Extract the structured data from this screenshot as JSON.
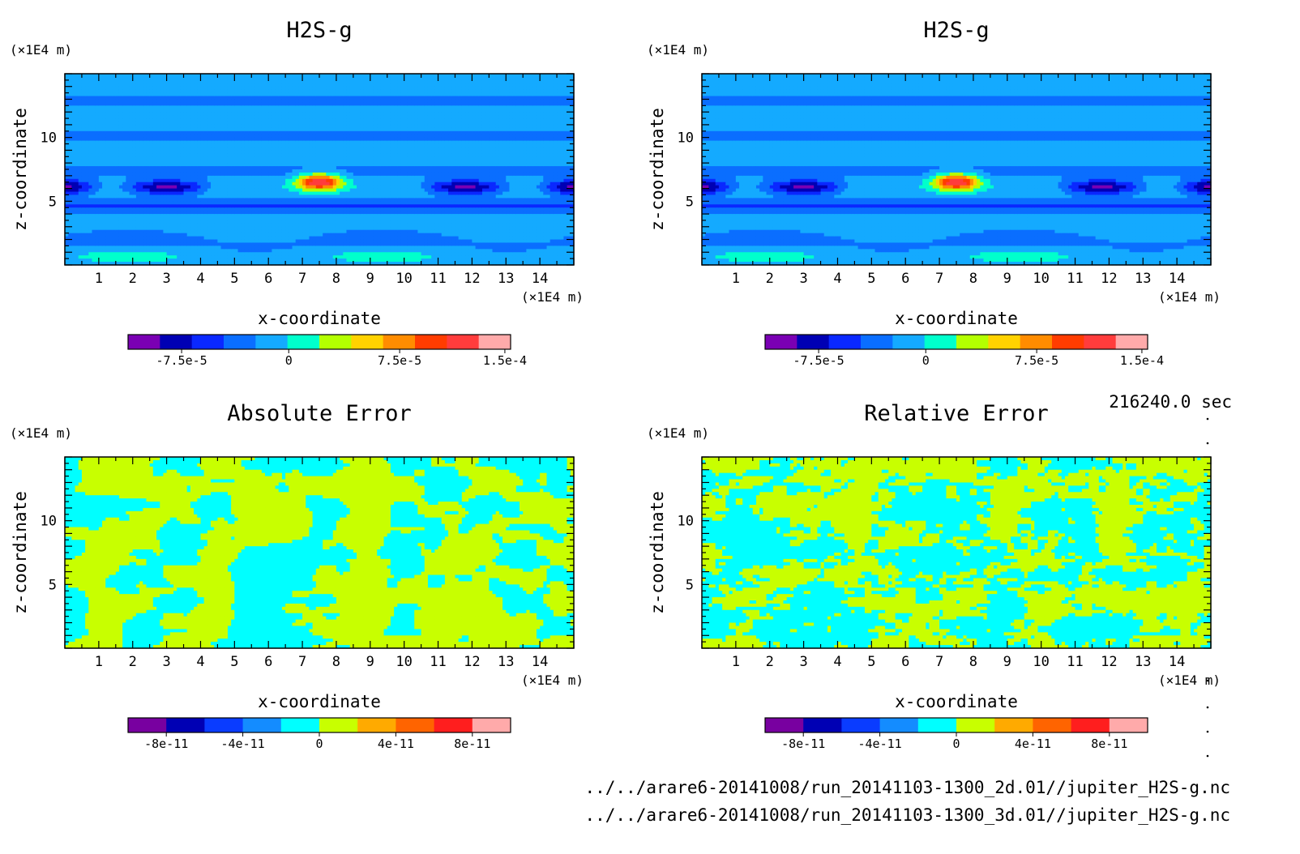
{
  "time_label": "216240.0 sec",
  "files": [
    "../../arare6-20141008/run_20141103-1300_2d.01//jupiter_H2S-g.nc",
    "../../arare6-20141008/run_20141103-1300_3d.01//jupiter_H2S-g.nc"
  ],
  "chart_data": [
    {
      "type": "heatmap",
      "title": "H2S-g",
      "xlabel": "x-coordinate",
      "ylabel": "z-coordinate",
      "x_unit": "(×1E4 m)",
      "y_unit": "(×1E4 m)",
      "xlim": [
        0,
        15
      ],
      "ylim": [
        0,
        15
      ],
      "x_ticks": [
        1,
        2,
        3,
        4,
        5,
        6,
        7,
        8,
        9,
        10,
        11,
        12,
        13,
        14
      ],
      "y_ticks": [
        5,
        10
      ],
      "colorbar": {
        "colors": [
          "#7a00b4",
          "#0000b4",
          "#0a28ff",
          "#0a6eff",
          "#14aaff",
          "#00ffcc",
          "#b4ff00",
          "#ffd200",
          "#ff8c00",
          "#ff3c00",
          "#ff3c3c",
          "#ffaaaa"
        ],
        "labels": [
          "-7.5e-5",
          "0",
          "7.5e-5",
          "1.5e-4"
        ]
      }
    },
    {
      "type": "heatmap",
      "title": "H2S-g",
      "xlabel": "x-coordinate",
      "ylabel": "z-coordinate",
      "x_unit": "(×1E4 m)",
      "y_unit": "(×1E4 m)",
      "xlim": [
        0,
        15
      ],
      "ylim": [
        0,
        15
      ],
      "x_ticks": [
        1,
        2,
        3,
        4,
        5,
        6,
        7,
        8,
        9,
        10,
        11,
        12,
        13,
        14
      ],
      "y_ticks": [
        5,
        10
      ],
      "colorbar": {
        "colors": [
          "#7a00b4",
          "#0000b4",
          "#0a28ff",
          "#0a6eff",
          "#14aaff",
          "#00ffcc",
          "#b4ff00",
          "#ffd200",
          "#ff8c00",
          "#ff3c00",
          "#ff3c3c",
          "#ffaaaa"
        ],
        "labels": [
          "-7.5e-5",
          "0",
          "7.5e-5",
          "1.5e-4"
        ]
      }
    },
    {
      "type": "heatmap",
      "title": "Absolute Error",
      "xlabel": "x-coordinate",
      "ylabel": "z-coordinate",
      "x_unit": "(×1E4 m)",
      "y_unit": "(×1E4 m)",
      "xlim": [
        0,
        15
      ],
      "ylim": [
        0,
        15
      ],
      "x_ticks": [
        1,
        2,
        3,
        4,
        5,
        6,
        7,
        8,
        9,
        10,
        11,
        12,
        13,
        14
      ],
      "y_ticks": [
        5,
        10
      ],
      "colorbar": {
        "colors": [
          "#7800a0",
          "#0000b4",
          "#0a3cff",
          "#148cff",
          "#00ffff",
          "#c8ff00",
          "#ffaa00",
          "#ff6400",
          "#ff1e1e",
          "#ffaaaa"
        ],
        "labels": [
          "-8e-11",
          "-4e-11",
          "0",
          "4e-11",
          "8e-11"
        ]
      }
    },
    {
      "type": "heatmap",
      "title": "Relative Error",
      "xlabel": "x-coordinate",
      "ylabel": "z-coordinate",
      "x_unit": "(×1E4 m)",
      "y_unit": "(×1E4 m)",
      "xlim": [
        0,
        15
      ],
      "ylim": [
        0,
        15
      ],
      "x_ticks": [
        1,
        2,
        3,
        4,
        5,
        6,
        7,
        8,
        9,
        10,
        11,
        12,
        13,
        14
      ],
      "y_ticks": [
        5,
        10
      ],
      "colorbar": {
        "colors": [
          "#7800a0",
          "#0000b4",
          "#0a3cff",
          "#148cff",
          "#00ffff",
          "#c8ff00",
          "#ffaa00",
          "#ff6400",
          "#ff1e1e",
          "#ffaaaa"
        ],
        "labels": [
          "-8e-11",
          "-4e-11",
          "0",
          "4e-11",
          "8e-11"
        ]
      }
    }
  ]
}
